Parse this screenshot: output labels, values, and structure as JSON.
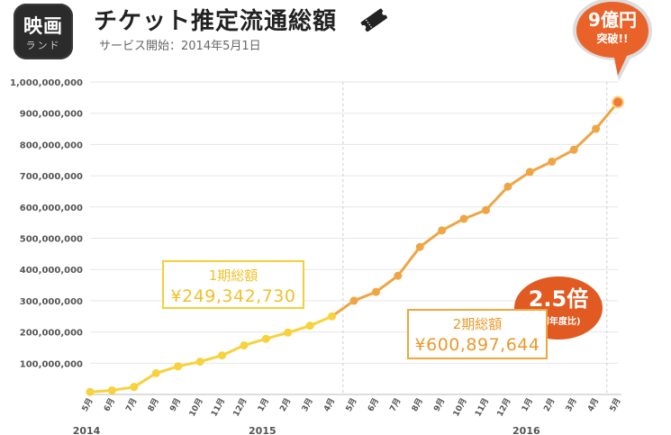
{
  "header": {
    "app_icon": {
      "line1": "映画",
      "line2": "ランド"
    },
    "title": "チケット推定流通総額",
    "subtitle": "サービス開始：2014年5月1日",
    "ticket_icon": "ticket-icon"
  },
  "callout": {
    "big": "9億円",
    "small": "突破!!",
    "color": "#e9622a"
  },
  "ratio_badge": {
    "big": "2.5倍",
    "small": "(初年度比)",
    "color": "#e05a22"
  },
  "annotations": {
    "period1": {
      "label": "1期総額",
      "value": "¥249,342,730",
      "color": "#f5cf3a"
    },
    "period2": {
      "label": "2期総額",
      "value": "¥600,897,644",
      "color": "#efa63e"
    }
  },
  "colors": {
    "line_year1": "#f7d23c",
    "line_year2": "#efa544",
    "grid": "#e6e6e6",
    "axis": "#bbbbbb"
  },
  "chart_data": {
    "type": "line",
    "title": "チケット推定流通総額",
    "subtitle": "サービス開始：2014年5月1日",
    "ylim": [
      0,
      1000000000
    ],
    "y_ticks": [
      "100,000,000",
      "200,000,000",
      "300,000,000",
      "400,000,000",
      "500,000,000",
      "600,000,000",
      "700,000,000",
      "800,000,000",
      "900,000,000",
      "1,000,000,000"
    ],
    "categories": [
      "5月",
      "6月",
      "7月",
      "8月",
      "9月",
      "10月",
      "11月",
      "12月",
      "1月",
      "2月",
      "3月",
      "4月",
      "5月",
      "6月",
      "7月",
      "8月",
      "9月",
      "10月",
      "11月",
      "12月",
      "1月",
      "2月",
      "3月",
      "4月",
      "5月"
    ],
    "year_labels": [
      {
        "label": "2014",
        "index": 0
      },
      {
        "label": "2015",
        "index": 8
      },
      {
        "label": "2016",
        "index": 20
      }
    ],
    "year_dividers": [
      11,
      23
    ],
    "series": [
      {
        "values": [
          8000000,
          13000000,
          24000000,
          68000000,
          90000000,
          105000000,
          125000000,
          157000000,
          178000000,
          198000000,
          220000000,
          250000000,
          300000000,
          328000000,
          380000000,
          472000000,
          525000000,
          562000000,
          590000000,
          665000000,
          712000000,
          745000000,
          783000000,
          850000000,
          935000000
        ]
      }
    ],
    "grid": true
  }
}
